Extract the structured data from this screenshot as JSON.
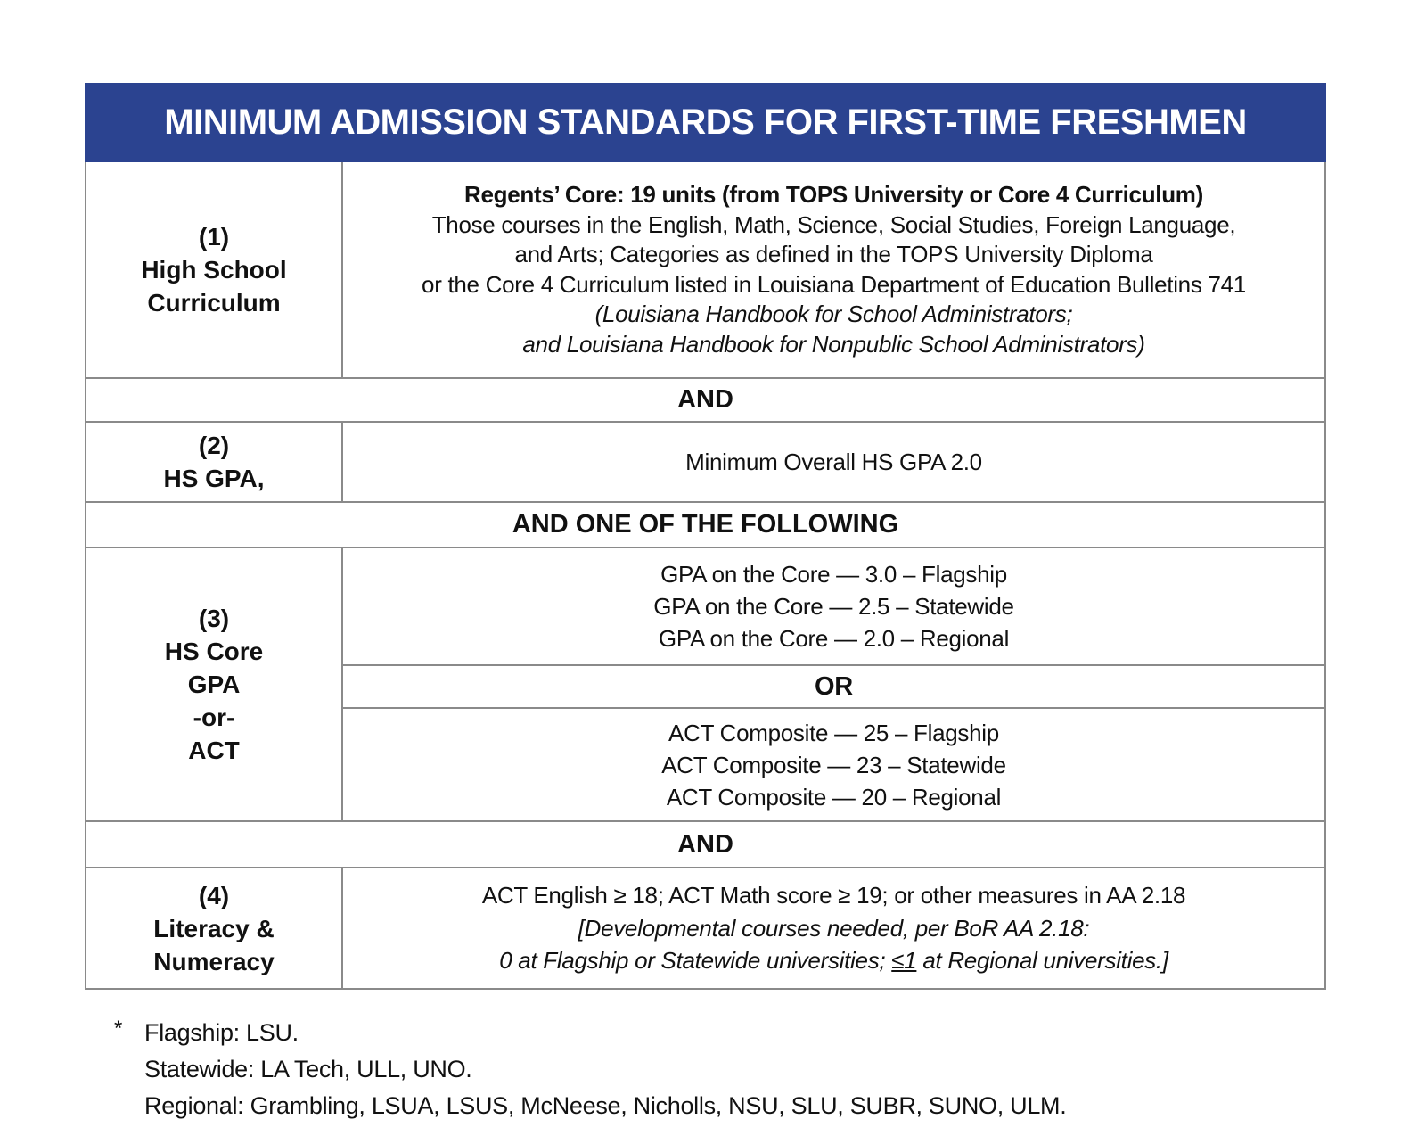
{
  "colors": {
    "banner_bg": "#2b4390",
    "banner_text": "#ffffff",
    "border": "#8a8a8a",
    "text": "#111111"
  },
  "header": {
    "title": "MINIMUM ADMISSION STANDARDS FOR FIRST-TIME FRESHMEN"
  },
  "connectors": {
    "and1": "AND",
    "and_one": "AND ONE OF THE FOLLOWING",
    "and2": "AND"
  },
  "row1": {
    "label": [
      "(1)",
      "High School",
      "Curriculum"
    ],
    "line1_bold": "Regents’ Core: 19 units (from TOPS University or Core 4 Curriculum)",
    "line2": "Those courses in the English, Math, Science, Social Studies, Foreign Language,",
    "line3": "and Arts; Categories as defined in the TOPS University Diploma",
    "line4": "or the Core 4 Curriculum listed in Louisiana Department of Education Bulletins 741",
    "line5_italic": "(Louisiana Handbook for School Administrators;",
    "line6_italic": "and Louisiana Handbook for Nonpublic School Administrators)"
  },
  "row2": {
    "label": [
      "(2)",
      "HS GPA,"
    ],
    "content": "Minimum Overall HS GPA 2.0"
  },
  "row3": {
    "label": [
      "(3)",
      "HS Core",
      "GPA",
      "-or-",
      "ACT"
    ],
    "gpa_lines": [
      "GPA on the Core — 3.0 – Flagship",
      "GPA on the Core — 2.5 – Statewide",
      "GPA on the Core — 2.0 – Regional"
    ],
    "or_label": "OR",
    "act_lines": [
      "ACT Composite — 25 – Flagship",
      "ACT Composite — 23 – Statewide",
      "ACT Composite — 20 – Regional"
    ]
  },
  "row4": {
    "label": [
      "(4)",
      "Literacy &",
      "Numeracy"
    ],
    "line1": "ACT English ≥ 18; ACT Math score ≥ 19; or other measures in AA 2.18",
    "line2_italic": "[Developmental courses needed, per BoR AA 2.18:",
    "line3_pre": "0 at Flagship or Statewide universities; ",
    "line3_underlined": "≤1",
    "line3_post": " at Regional universities.]"
  },
  "footnote": {
    "marker": "*",
    "lines": [
      "Flagship: LSU.",
      "Statewide: LA Tech, ULL, UNO.",
      "Regional: Grambling, LSUA, LSUS, McNeese, Nicholls, NSU, SLU, SUBR, SUNO, ULM."
    ]
  }
}
